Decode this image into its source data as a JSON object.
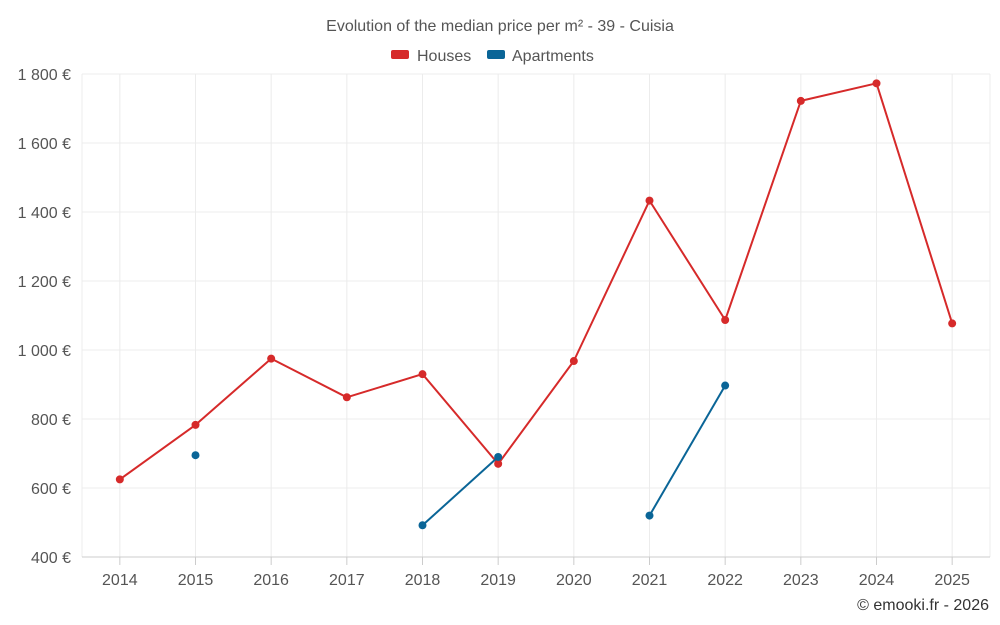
{
  "chart_data": {
    "type": "line",
    "title": "Evolution of the median price per m² - 39 - Cuisia",
    "xlabel": "",
    "ylabel": "",
    "categories": [
      "2014",
      "2015",
      "2016",
      "2017",
      "2018",
      "2019",
      "2020",
      "2021",
      "2022",
      "2023",
      "2024",
      "2025"
    ],
    "ylim": [
      400,
      1800
    ],
    "yticks": [
      400,
      600,
      800,
      1000,
      1200,
      1400,
      1600,
      1800
    ],
    "ytick_labels": [
      "400 €",
      "600 €",
      "800 €",
      "1 000 €",
      "1 200 €",
      "1 400 €",
      "1 600 €",
      "1 800 €"
    ],
    "grid": true,
    "legend_position": "top-center",
    "series": [
      {
        "name": "Houses",
        "color": "#d62a2a",
        "values": [
          625,
          783,
          975,
          863,
          930,
          670,
          968,
          1433,
          1087,
          1722,
          1773,
          1077
        ]
      },
      {
        "name": "Apartments",
        "color": "#0a6597",
        "values": [
          null,
          695,
          null,
          null,
          492,
          690,
          null,
          520,
          897,
          null,
          null,
          null
        ]
      }
    ],
    "credit": "© emooki.fr - 2026"
  }
}
